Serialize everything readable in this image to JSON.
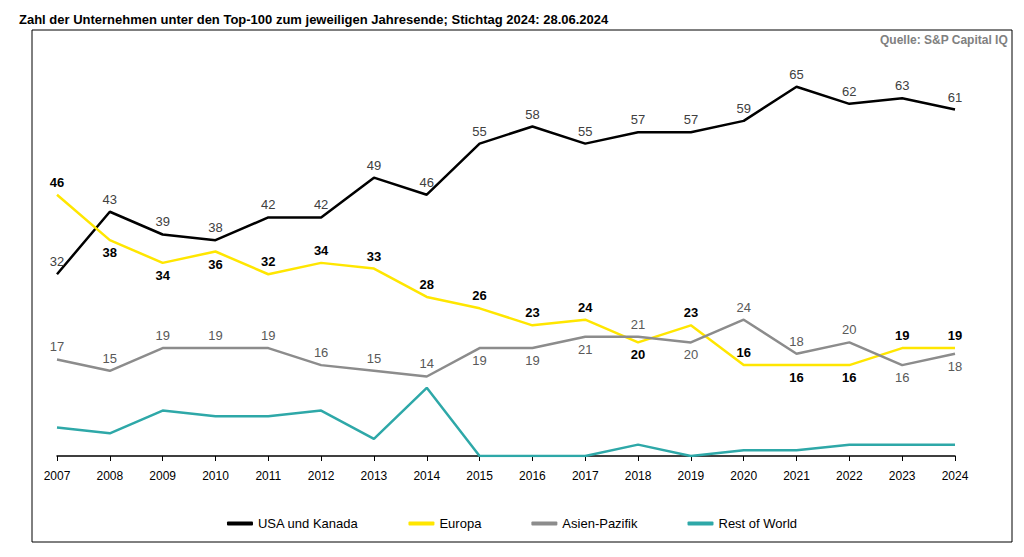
{
  "chart_data": {
    "type": "line",
    "title": "Zahl der Unternehmen unter den Top-100 zum jeweiligen Jahresende; Stichtag 2024: 28.06.2024",
    "annotations": [
      "Quelle: S&P Capital IQ"
    ],
    "categories": [
      "2007",
      "2008",
      "2009",
      "2010",
      "2011",
      "2012",
      "2013",
      "2014",
      "2015",
      "2016",
      "2017",
      "2018",
      "2019",
      "2020",
      "2021",
      "2022",
      "2023",
      "2024"
    ],
    "series": [
      {
        "name": "USA und Kanada",
        "color": "#000000",
        "data_labels": true,
        "values": [
          32,
          43,
          39,
          38,
          42,
          42,
          49,
          46,
          55,
          58,
          55,
          57,
          57,
          59,
          65,
          62,
          63,
          61
        ]
      },
      {
        "name": "Europa",
        "color": "#FFE600",
        "data_labels": true,
        "values": [
          46,
          38,
          34,
          36,
          32,
          34,
          33,
          28,
          26,
          23,
          24,
          20,
          23,
          16,
          16,
          16,
          19,
          19
        ]
      },
      {
        "name": "Asien-Pazifik",
        "color": "#8C8C8C",
        "data_labels": true,
        "values": [
          17,
          15,
          19,
          19,
          19,
          16,
          15,
          14,
          19,
          19,
          21,
          21,
          20,
          24,
          18,
          20,
          16,
          18
        ]
      },
      {
        "name": "Rest of World",
        "color": "#2EA8A8",
        "data_labels": false,
        "values": [
          5,
          4,
          8,
          7,
          7,
          8,
          3,
          12,
          0,
          0,
          0,
          2,
          0,
          1,
          1,
          2,
          2,
          2
        ]
      }
    ],
    "ylim": [
      0,
      75
    ],
    "grid": false,
    "legend": "bottom",
    "tick_labels": "x",
    "marker": "none"
  }
}
